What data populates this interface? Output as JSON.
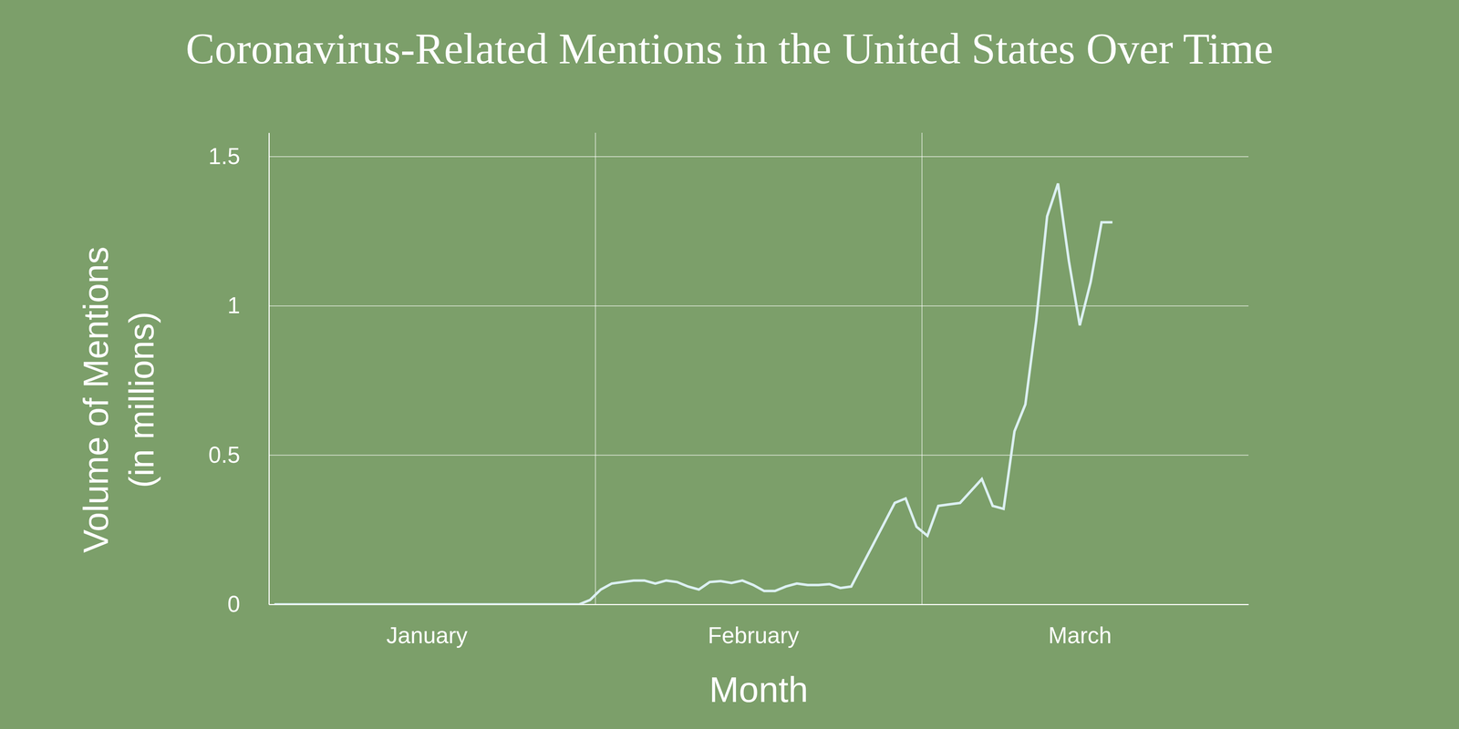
{
  "chart_data": {
    "type": "line",
    "title": "Coronavirus-Related Mentions in the United States Over Time",
    "x_label": "Month",
    "y_label": [
      "Volume of Mentions",
      "(in millions)"
    ],
    "categories": [
      null,
      null,
      null,
      null,
      null,
      null,
      null,
      null,
      null,
      null,
      null,
      null,
      null,
      null,
      "January",
      null,
      null,
      null,
      null,
      null,
      null,
      null,
      null,
      null,
      null,
      null,
      null,
      null,
      null,
      null,
      null,
      null,
      null,
      null,
      null,
      null,
      null,
      null,
      null,
      null,
      null,
      null,
      null,
      null,
      "February",
      null,
      null,
      null,
      null,
      null,
      null,
      null,
      null,
      null,
      null,
      null,
      null,
      null,
      null,
      null,
      null,
      null,
      null,
      null,
      null,
      null,
      null,
      null,
      null,
      null,
      null,
      null,
      null,
      null,
      "March",
      null,
      null,
      null,
      null,
      null,
      null,
      null,
      null,
      null,
      null,
      null,
      null,
      null,
      null,
      null
    ],
    "values": [
      0,
      0,
      0,
      0,
      0,
      0,
      0,
      0,
      0,
      0,
      0,
      0,
      0,
      0,
      0,
      0,
      0,
      0,
      0,
      0,
      0,
      0,
      0,
      0,
      0,
      0,
      0,
      0,
      0,
      0.015,
      0.05,
      0.07,
      0.075,
      0.08,
      0.08,
      0.07,
      0.08,
      0.075,
      0.06,
      0.05,
      0.075,
      0.078,
      0.072,
      0.08,
      0.065,
      0.045,
      0.045,
      0.06,
      0.07,
      0.065,
      0.065,
      0.068,
      0.055,
      0.06,
      0.13,
      0.2,
      0.27,
      0.34,
      0.355,
      0.26,
      0.23,
      0.33,
      0.335,
      0.34,
      0.38,
      0.42,
      0.33,
      0.32,
      0.58,
      0.67,
      0.95,
      1.3,
      1.41,
      1.15,
      0.935,
      1.08,
      1.28,
      1.28,
      null,
      null,
      null,
      null,
      null,
      null,
      null,
      null,
      null,
      null,
      null,
      null
    ],
    "color": "#dcf0f2",
    "ylim": [
      0,
      1.58
    ],
    "yticks": [
      0,
      0.5,
      1,
      1.5
    ],
    "grid": true
  }
}
